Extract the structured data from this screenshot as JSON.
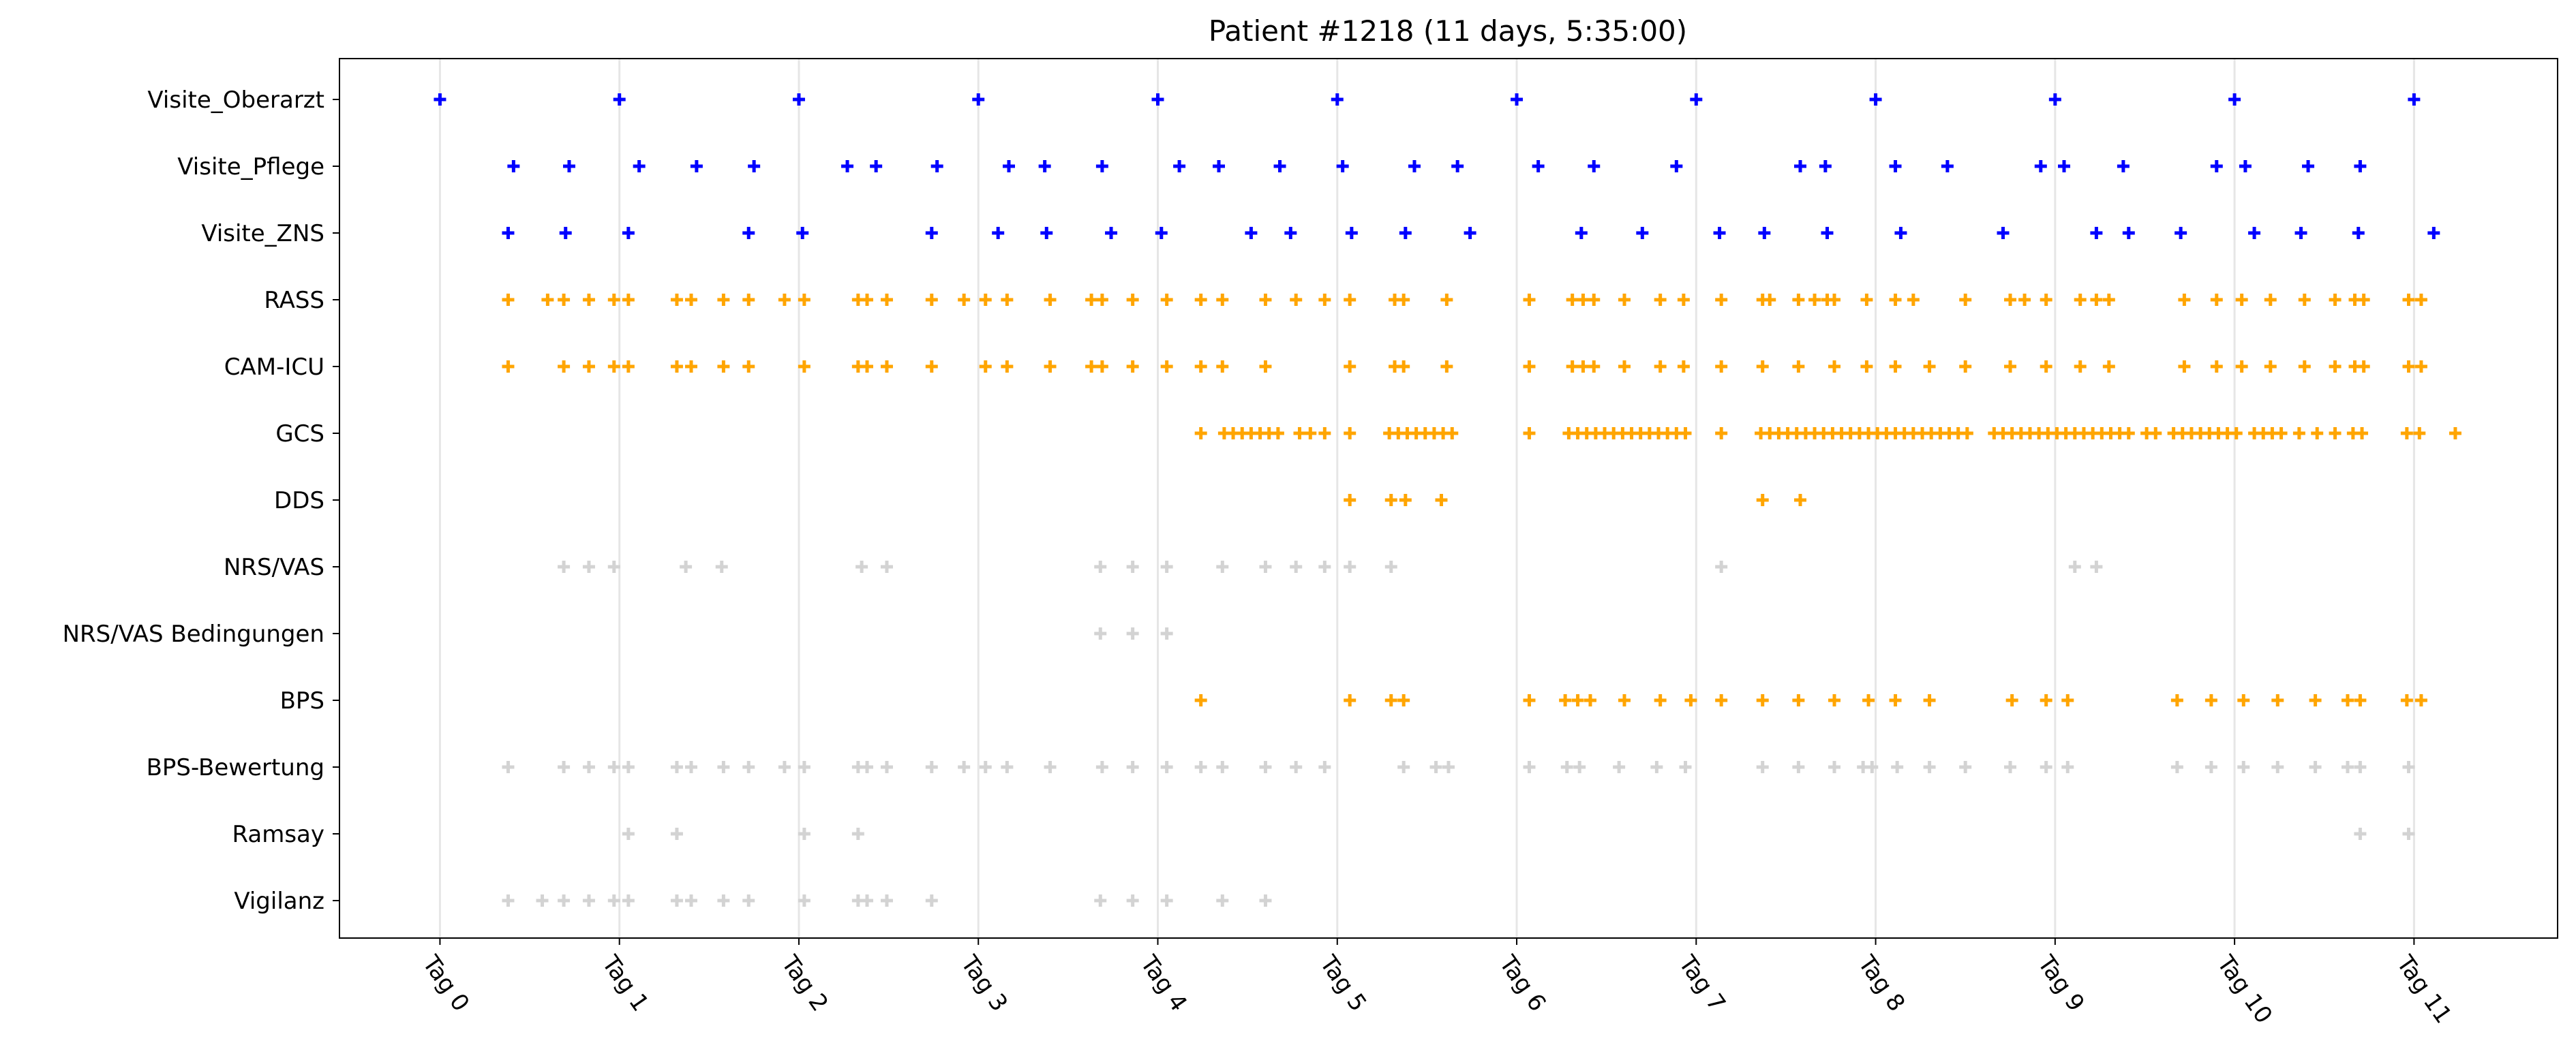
{
  "colors": {
    "visite": "#0000ff",
    "score": "#ffa500",
    "secondary": "#d3d3d3",
    "gridline": "#e6e6e6",
    "frame": "#000000"
  },
  "chart_data": {
    "type": "scatter",
    "marker": "plus",
    "title": "Patient #1218 (11 days, 5:35:00)",
    "xlabel": "",
    "ylabel": "",
    "x_unit": "days",
    "xlim": [
      -0.56,
      11.8
    ],
    "x_ticks": [
      {
        "value": 0,
        "label": "Tag 0"
      },
      {
        "value": 1,
        "label": "Tag 1"
      },
      {
        "value": 2,
        "label": "Tag 2"
      },
      {
        "value": 3,
        "label": "Tag 3"
      },
      {
        "value": 4,
        "label": "Tag 4"
      },
      {
        "value": 5,
        "label": "Tag 5"
      },
      {
        "value": 6,
        "label": "Tag 6"
      },
      {
        "value": 7,
        "label": "Tag 7"
      },
      {
        "value": 8,
        "label": "Tag 8"
      },
      {
        "value": 9,
        "label": "Tag 9"
      },
      {
        "value": 10,
        "label": "Tag 10"
      },
      {
        "value": 11,
        "label": "Tag 11"
      }
    ],
    "vertical_day_gridlines": true,
    "legend": "none",
    "categories": [
      "Visite_Oberarzt",
      "Visite_Pflege",
      "Visite_ZNS",
      "RASS",
      "CAM-ICU",
      "GCS",
      "DDS",
      "NRS/VAS",
      "NRS/VAS Bedingungen",
      "BPS",
      "BPS-Bewertung",
      "Ramsay",
      "Vigilanz"
    ],
    "series": [
      {
        "category": "Visite_Oberarzt",
        "color": "#0000ff",
        "x": [
          0.0,
          1.0,
          2.0,
          3.0,
          4.0,
          5.0,
          6.0,
          7.0,
          8.0,
          9.0,
          10.0,
          11.0
        ]
      },
      {
        "category": "Visite_Pflege",
        "color": "#0000ff",
        "x": [
          0.41,
          0.72,
          1.11,
          1.43,
          1.75,
          2.27,
          2.43,
          2.77,
          3.17,
          3.37,
          3.69,
          4.12,
          4.34,
          4.68,
          5.03,
          5.43,
          5.67,
          6.12,
          6.43,
          6.89,
          7.58,
          7.72,
          8.11,
          8.4,
          8.92,
          9.05,
          9.38,
          9.9,
          10.06,
          10.41,
          10.7
        ]
      },
      {
        "category": "Visite_ZNS",
        "color": "#0000ff",
        "x": [
          0.38,
          0.7,
          1.05,
          1.72,
          2.02,
          2.74,
          3.11,
          3.38,
          3.74,
          4.02,
          4.52,
          4.74,
          5.08,
          5.38,
          5.74,
          6.36,
          6.7,
          7.13,
          7.38,
          7.73,
          8.14,
          8.71,
          9.23,
          9.41,
          9.7,
          10.11,
          10.37,
          10.69,
          11.11
        ]
      },
      {
        "category": "RASS",
        "color": "#ffa500",
        "x": [
          0.38,
          0.6,
          0.69,
          0.83,
          0.97,
          1.05,
          1.32,
          1.4,
          1.58,
          1.72,
          1.92,
          2.03,
          2.33,
          2.38,
          2.49,
          2.74,
          2.92,
          3.04,
          3.16,
          3.4,
          3.63,
          3.69,
          3.86,
          4.05,
          4.24,
          4.36,
          4.6,
          4.77,
          4.93,
          5.07,
          5.32,
          5.37,
          5.61,
          6.07,
          6.31,
          6.37,
          6.43,
          6.6,
          6.8,
          6.93,
          7.14,
          7.37,
          7.41,
          7.57,
          7.66,
          7.73,
          7.77,
          7.95,
          8.11,
          8.21,
          8.5,
          8.75,
          8.83,
          8.95,
          9.14,
          9.23,
          9.3,
          9.72,
          9.9,
          10.04,
          10.2,
          10.39,
          10.56,
          10.67,
          10.72,
          10.97,
          11.04
        ]
      },
      {
        "category": "CAM-ICU",
        "color": "#ffa500",
        "x": [
          0.38,
          0.69,
          0.83,
          0.97,
          1.05,
          1.32,
          1.4,
          1.58,
          1.72,
          2.03,
          2.33,
          2.38,
          2.49,
          2.74,
          3.04,
          3.16,
          3.4,
          3.63,
          3.69,
          3.86,
          4.05,
          4.24,
          4.36,
          4.6,
          5.07,
          5.32,
          5.37,
          5.61,
          6.07,
          6.31,
          6.37,
          6.43,
          6.6,
          6.8,
          6.93,
          7.14,
          7.37,
          7.57,
          7.77,
          7.95,
          8.11,
          8.3,
          8.5,
          8.75,
          8.95,
          9.14,
          9.3,
          9.72,
          9.9,
          10.04,
          10.2,
          10.39,
          10.56,
          10.67,
          10.72,
          10.97,
          11.04
        ]
      },
      {
        "category": "GCS",
        "color": "#ffa500",
        "x": [
          4.24,
          4.37,
          4.42,
          4.47,
          4.52,
          4.57,
          4.62,
          4.67,
          4.79,
          4.85,
          4.93,
          5.07,
          5.29,
          5.34,
          5.39,
          5.44,
          5.49,
          5.54,
          5.59,
          5.64,
          6.07,
          6.29,
          6.34,
          6.39,
          6.44,
          6.49,
          6.54,
          6.59,
          6.64,
          6.69,
          6.74,
          6.79,
          6.84,
          6.89,
          6.94,
          7.14,
          7.36,
          7.41,
          7.46,
          7.51,
          7.56,
          7.61,
          7.66,
          7.71,
          7.76,
          7.81,
          7.86,
          7.91,
          7.96,
          8.01,
          8.06,
          8.11,
          8.16,
          8.21,
          8.26,
          8.31,
          8.36,
          8.41,
          8.46,
          8.51,
          8.66,
          8.71,
          8.76,
          8.81,
          8.86,
          8.91,
          8.96,
          9.01,
          9.06,
          9.11,
          9.16,
          9.21,
          9.26,
          9.31,
          9.36,
          9.41,
          9.51,
          9.56,
          9.66,
          9.71,
          9.76,
          9.81,
          9.86,
          9.91,
          9.96,
          10.01,
          10.11,
          10.16,
          10.21,
          10.26,
          10.36,
          10.46,
          10.56,
          10.66,
          10.71,
          10.96,
          11.03,
          11.23
        ]
      },
      {
        "category": "DDS",
        "color": "#ffa500",
        "x": [
          5.07,
          5.3,
          5.38,
          5.58,
          7.37,
          7.58
        ]
      },
      {
        "category": "NRS/VAS",
        "color": "#d3d3d3",
        "x": [
          0.69,
          0.83,
          0.97,
          1.37,
          1.57,
          2.35,
          2.49,
          3.68,
          3.86,
          4.05,
          4.36,
          4.6,
          4.77,
          4.93,
          5.07,
          5.3,
          7.14,
          9.11,
          9.23
        ]
      },
      {
        "category": "NRS/VAS Bedingungen",
        "color": "#d3d3d3",
        "x": [
          3.68,
          3.86,
          4.05
        ]
      },
      {
        "category": "BPS",
        "color": "#ffa500",
        "x": [
          4.24,
          5.07,
          5.3,
          5.37,
          6.07,
          6.27,
          6.34,
          6.41,
          6.6,
          6.8,
          6.97,
          7.14,
          7.37,
          7.57,
          7.77,
          7.96,
          8.11,
          8.3,
          8.76,
          8.95,
          9.07,
          9.68,
          9.87,
          10.05,
          10.24,
          10.45,
          10.63,
          10.7,
          10.96,
          11.04
        ]
      },
      {
        "category": "BPS-Bewertung",
        "color": "#d3d3d3",
        "x": [
          0.38,
          0.69,
          0.83,
          0.97,
          1.05,
          1.32,
          1.4,
          1.58,
          1.72,
          1.92,
          2.03,
          2.33,
          2.38,
          2.49,
          2.74,
          2.92,
          3.04,
          3.16,
          3.4,
          3.69,
          3.86,
          4.05,
          4.24,
          4.36,
          4.6,
          4.77,
          4.93,
          5.37,
          5.55,
          5.62,
          6.07,
          6.28,
          6.35,
          6.57,
          6.78,
          6.94,
          7.37,
          7.57,
          7.77,
          7.93,
          7.98,
          8.12,
          8.3,
          8.5,
          8.75,
          8.95,
          9.07,
          9.68,
          9.87,
          10.05,
          10.24,
          10.45,
          10.63,
          10.7,
          10.97
        ]
      },
      {
        "category": "Ramsay",
        "color": "#d3d3d3",
        "x": [
          1.05,
          1.32,
          2.03,
          2.33,
          10.7,
          10.97
        ]
      },
      {
        "category": "Vigilanz",
        "color": "#d3d3d3",
        "x": [
          0.38,
          0.57,
          0.69,
          0.83,
          0.97,
          1.05,
          1.32,
          1.4,
          1.58,
          1.72,
          2.03,
          2.33,
          2.38,
          2.49,
          2.74,
          3.68,
          3.86,
          4.05,
          4.36,
          4.6
        ]
      }
    ]
  }
}
